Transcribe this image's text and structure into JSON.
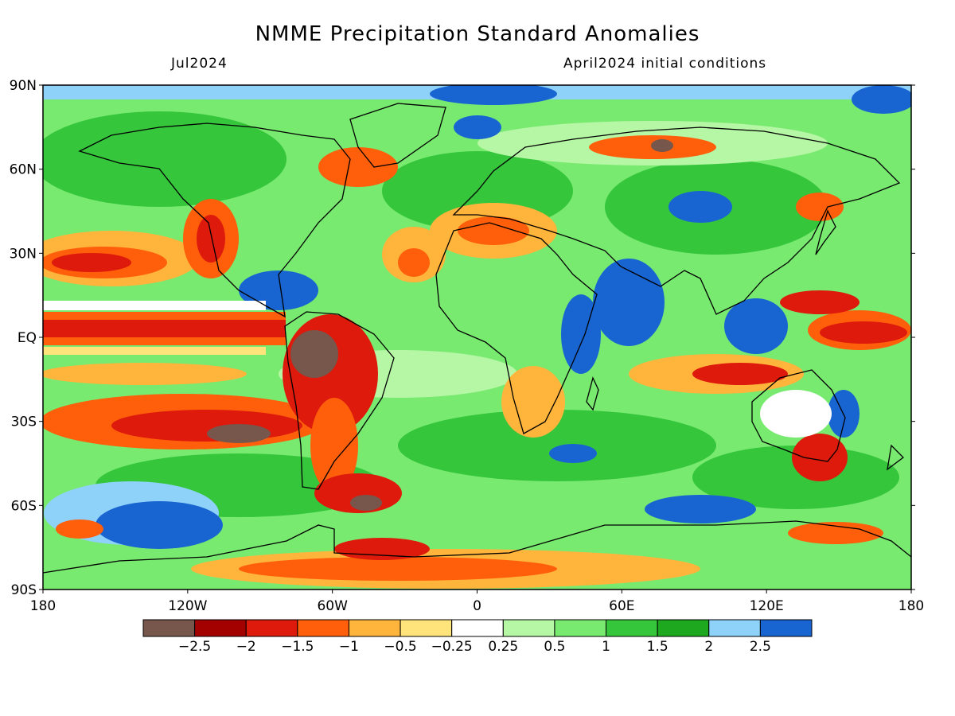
{
  "title": "NMME Precipitation Standard Anomalies",
  "subtitle_left": "Jul2024",
  "subtitle_right": "April2024 initial conditions",
  "lat_labels": [
    "90N",
    "60N",
    "30N",
    "EQ",
    "30S",
    "60S",
    "90S"
  ],
  "lat_values": [
    90,
    60,
    30,
    0,
    -30,
    -60,
    -90
  ],
  "lon_labels": [
    "180",
    "120W",
    "60W",
    "0",
    "60E",
    "120E",
    "180"
  ],
  "lon_values": [
    -180,
    -120,
    -60,
    0,
    60,
    120,
    180
  ],
  "colorbar": {
    "colors": [
      "#77574c",
      "#a30000",
      "#dd1a0c",
      "#ff5e0b",
      "#ffb43c",
      "#ffe47c",
      "#ffffff",
      "#b6f7a5",
      "#78ea70",
      "#35c63c",
      "#1ea81f",
      "#8ed1f9",
      "#1865d2"
    ],
    "labels": [
      "−2.5",
      "−2",
      "−1.5",
      "−1",
      "−0.5",
      "−0.25",
      "0.25",
      "0.5",
      "1",
      "1.5",
      "2",
      "2.5"
    ]
  },
  "palette": {
    "frame": "#000000",
    "coast": "#000000"
  }
}
